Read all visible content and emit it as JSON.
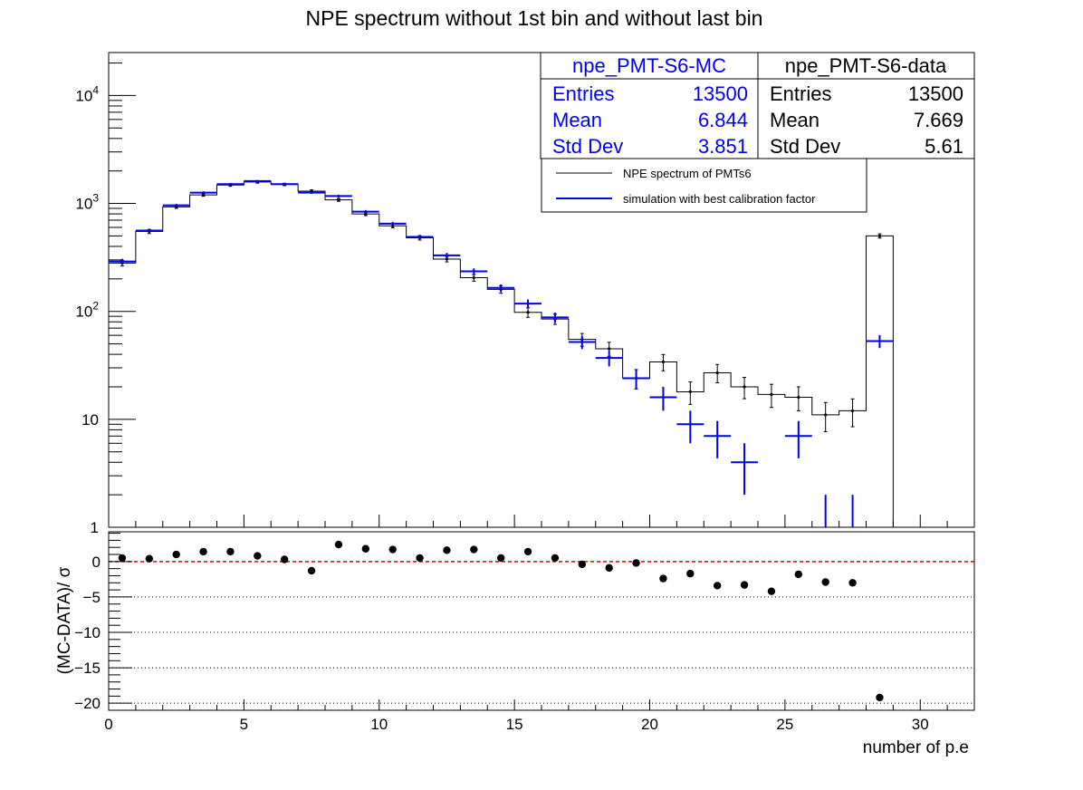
{
  "title": "NPE spectrum without 1st bin and without last bin",
  "colors": {
    "data": "#000000",
    "mc": "#0000ee",
    "zero_line": "#dd0000",
    "axis": "#000000"
  },
  "stats_mc": {
    "name": "npe_PMT-S6-MC",
    "rows": [
      {
        "label": "Entries",
        "value": "13500"
      },
      {
        "label": "Mean",
        "value": "6.844"
      },
      {
        "label": "Std Dev",
        "value": "3.851"
      }
    ]
  },
  "stats_data": {
    "name": "npe_PMT-S6-data",
    "rows": [
      {
        "label": "Entries",
        "value": "13500"
      },
      {
        "label": "Mean",
        "value": "7.669"
      },
      {
        "label": "Std Dev",
        "value": "5.61"
      }
    ]
  },
  "legend": [
    {
      "label": "NPE spectrum of PMTs6",
      "color": "#000000"
    },
    {
      "label": "simulation with best calibration factor",
      "color": "#0000ee"
    }
  ],
  "chart_data": [
    {
      "type": "line",
      "panel": "top",
      "ylog": true,
      "xlim": [
        0,
        32
      ],
      "ylim": [
        1,
        25000
      ],
      "y_tick_labels": [
        "1",
        "10",
        "10^2",
        "10^3",
        "10^4"
      ],
      "bin_width": 1,
      "series": [
        {
          "name": "NPE spectrum of PMTs6",
          "style": "histogram-steps-with-errors",
          "x": [
            0.5,
            1.5,
            2.5,
            3.5,
            4.5,
            5.5,
            6.5,
            7.5,
            8.5,
            9.5,
            10.5,
            11.5,
            12.5,
            13.5,
            14.5,
            15.5,
            16.5,
            17.5,
            18.5,
            19.5,
            20.5,
            21.5,
            22.5,
            23.5,
            24.5,
            25.5,
            26.5,
            27.5,
            28.5
          ],
          "values": [
            280,
            550,
            930,
            1200,
            1480,
            1580,
            1500,
            1300,
            1080,
            800,
            620,
            480,
            305,
            205,
            160,
            98,
            85,
            55,
            45,
            24,
            34,
            18,
            27,
            20,
            17,
            16,
            11,
            12,
            500
          ]
        },
        {
          "name": "simulation with best calibration factor",
          "style": "markers-with-errors",
          "x": [
            0.5,
            1.5,
            2.5,
            3.5,
            4.5,
            5.5,
            6.5,
            7.5,
            8.5,
            9.5,
            10.5,
            11.5,
            12.5,
            13.5,
            14.5,
            15.5,
            16.5,
            17.5,
            18.5,
            19.5,
            20.5,
            21.5,
            22.5,
            23.5,
            24.5,
            25.5,
            26.5,
            27.5,
            28.5
          ],
          "values": [
            290,
            560,
            960,
            1260,
            1510,
            1610,
            1510,
            1260,
            1170,
            840,
            650,
            490,
            330,
            235,
            165,
            118,
            88,
            52,
            37,
            24,
            16,
            9,
            7,
            4,
            null,
            7,
            1,
            1,
            53
          ]
        }
      ]
    },
    {
      "type": "scatter",
      "panel": "bottom",
      "xlabel": "number of p.e",
      "ylabel": "(MC-DATA)/ σ",
      "xlim": [
        0,
        32
      ],
      "ylim": [
        -21,
        4.2
      ],
      "x_ticks": [
        0,
        5,
        10,
        15,
        20,
        25,
        30
      ],
      "y_ticks": [
        0,
        -5,
        -10,
        -15,
        -20
      ],
      "y_tick_labels": [
        "0",
        "−5",
        "−10",
        "−15",
        "−20"
      ],
      "gridlines_y": [
        -5,
        -10,
        -15,
        -20
      ],
      "reference_line_y": 0,
      "x": [
        0.5,
        1.5,
        2.5,
        3.5,
        4.5,
        5.5,
        6.5,
        7.5,
        8.5,
        9.5,
        10.5,
        11.5,
        12.5,
        13.5,
        14.5,
        15.5,
        16.5,
        17.5,
        18.5,
        19.5,
        20.5,
        21.5,
        22.5,
        23.5,
        24.5,
        25.5,
        26.5,
        27.5,
        28.5
      ],
      "values": [
        0.5,
        0.4,
        1.0,
        1.4,
        1.4,
        0.8,
        0.3,
        -1.3,
        2.4,
        1.8,
        1.7,
        0.5,
        1.6,
        1.7,
        0.5,
        1.4,
        0.5,
        -0.4,
        -0.9,
        -0.2,
        -2.4,
        -1.7,
        -3.4,
        -3.3,
        -4.2,
        -1.8,
        -2.9,
        -3.0,
        -19.2
      ]
    }
  ]
}
